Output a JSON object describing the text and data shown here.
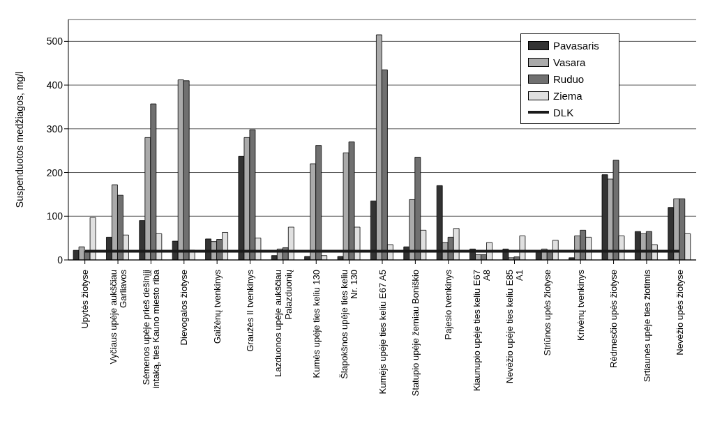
{
  "chart_data": {
    "type": "bar",
    "ylabel": "Suspenduotos medžiagos, mg/l",
    "categories": [
      "Upytės žiotyse",
      "Vyčiaus upėje aukščiau Garliavos",
      "Sėmenos upėje prieš dešinįjį intaką, ties Kauno miesto riba",
      "Dievogalos žiotyse",
      "Gaižėnų tvenkinys",
      "Graužės II tvenkinys",
      "Lazduonos upėje aukščiau Palazduonių",
      "Kumės upėje ties keliu 130",
      "Šlapokšnos upėje ties keliu Nr. 130",
      "Kumėjs upėje ties keliu E67 A5",
      "Statupio upėje žemiau Boniškio",
      "Pajesio tvenkinys",
      "Kiaunupio upėje ties keliu E67 A8",
      "Nevėžio upėje ties keliu E85 A1",
      "Striūnos upės žiotyse",
      "Krivėnų tvenkinys",
      "Rėdmesčio upės žiotyse",
      "Srtiaunės upėje ties žiotimis",
      "Nevėžio upės žiotyse"
    ],
    "series": [
      {
        "name": "Pavasaris",
        "color": "#333333",
        "values": [
          22,
          52,
          90,
          43,
          48,
          237,
          10,
          8,
          8,
          135,
          30,
          170,
          25,
          25,
          20,
          5,
          195,
          65,
          120
        ]
      },
      {
        "name": "Vasara",
        "color": "#aaaaaa",
        "values": [
          30,
          172,
          280,
          412,
          42,
          280,
          25,
          220,
          245,
          515,
          138,
          40,
          12,
          5,
          25,
          55,
          185,
          60,
          140
        ]
      },
      {
        "name": "Ruduo",
        "color": "#707070",
        "values": [
          20,
          148,
          357,
          410,
          47,
          298,
          28,
          262,
          270,
          435,
          235,
          52,
          12,
          7,
          22,
          68,
          228,
          65,
          140
        ]
      },
      {
        "name": "Ziema",
        "color": "#e0e0e0",
        "values": [
          97,
          57,
          60,
          22,
          63,
          50,
          75,
          10,
          75,
          35,
          68,
          72,
          40,
          55,
          45,
          52,
          55,
          35,
          60
        ]
      },
      {
        "name": "DLK",
        "type": "line",
        "color": "#1a1a1a",
        "values": [
          20,
          20,
          20,
          20,
          20,
          20,
          20,
          20,
          20,
          20,
          20,
          20,
          20,
          20,
          20,
          20,
          20,
          20,
          20
        ]
      }
    ],
    "ylim": [
      0,
      550
    ],
    "yticks": [
      0,
      100,
      200,
      300,
      400,
      500
    ],
    "grid": "y",
    "legend": "top right"
  }
}
